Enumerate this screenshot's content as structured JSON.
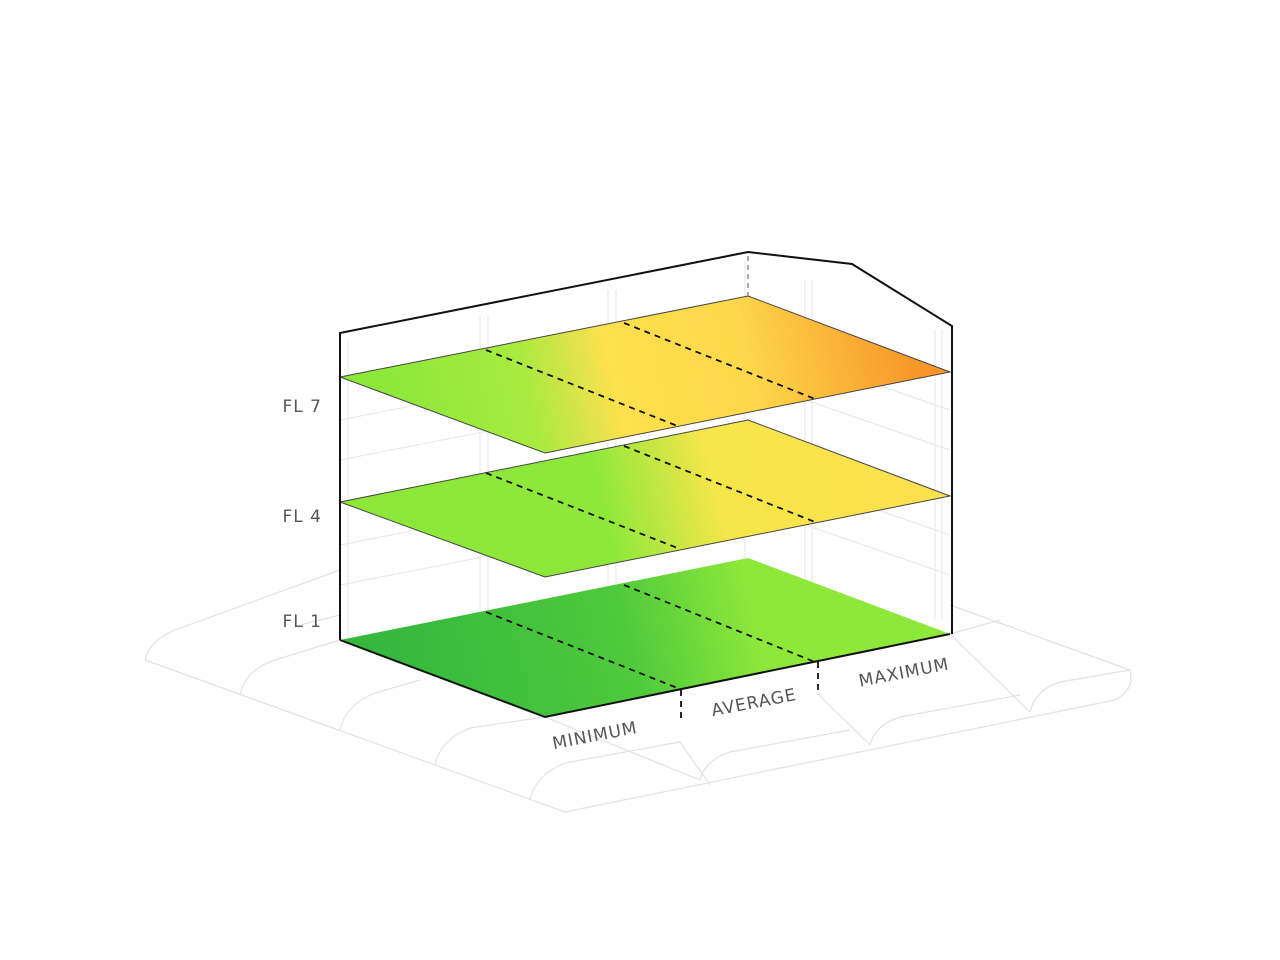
{
  "floors": [
    "FL 7",
    "FL 4",
    "FL 1"
  ],
  "zones": [
    "MINIMUM",
    "AVERAGE",
    "MAXIMUM"
  ]
}
